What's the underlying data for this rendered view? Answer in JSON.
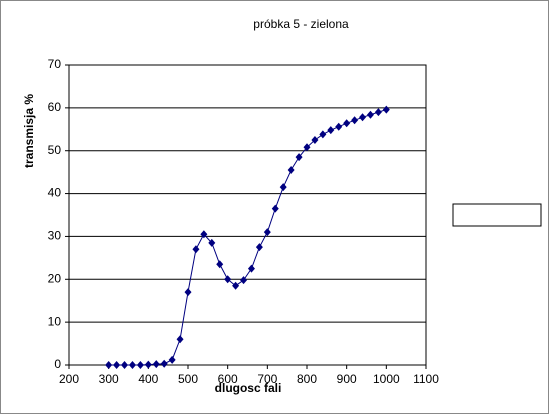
{
  "chart_data": {
    "type": "line",
    "title": "próbka 5 - zielona",
    "x_label": "dlugosc fali",
    "y_label": "transmisja %",
    "x": [
      300,
      320,
      340,
      360,
      380,
      400,
      420,
      440,
      460,
      480,
      500,
      520,
      540,
      560,
      580,
      600,
      620,
      640,
      660,
      680,
      700,
      720,
      740,
      760,
      780,
      800,
      820,
      840,
      860,
      880,
      900,
      920,
      940,
      960,
      980,
      1000
    ],
    "series": [
      {
        "color": "#000080",
        "values": [
          0,
          0,
          0,
          0,
          0,
          0.1,
          0.2,
          0.3,
          1.2,
          6,
          17,
          27,
          30.5,
          28.5,
          23.5,
          20,
          18.5,
          19.8,
          22.5,
          27.5,
          31,
          36.5,
          41.5,
          45.5,
          48.5,
          50.8,
          52.5,
          53.8,
          54.8,
          55.6,
          56.4,
          57.1,
          57.8,
          58.4,
          59,
          59.6
        ]
      }
    ],
    "xlim": [
      200,
      1100
    ],
    "xticks": [
      200,
      300,
      400,
      500,
      600,
      700,
      800,
      900,
      1000,
      1100
    ],
    "ylim": [
      0,
      70
    ],
    "yticks": [
      0,
      10,
      20,
      30,
      40,
      50,
      60,
      70
    ],
    "grid": true
  }
}
